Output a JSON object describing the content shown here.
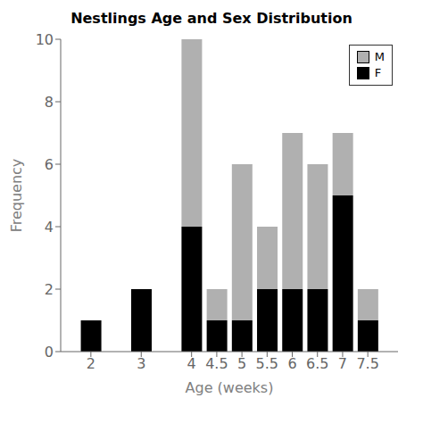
{
  "chart_data": {
    "type": "bar",
    "title": "Nestlings Age and Sex Distribution",
    "x": [
      2,
      3,
      4,
      4.5,
      5,
      5.5,
      6,
      6.5,
      7,
      7.5
    ],
    "series": [
      {
        "name": "F",
        "color": "#000000",
        "values": [
          1,
          2,
          4,
          1,
          1,
          2,
          2,
          2,
          5,
          1
        ]
      },
      {
        "name": "M",
        "color": "#b0b0b0",
        "values": [
          0,
          0,
          6,
          1,
          5,
          2,
          5,
          4,
          2,
          1
        ]
      }
    ],
    "xlabel": "Age (weeks)",
    "ylabel": "Frequency",
    "xlim": [
      1.4,
      8.1
    ],
    "xticks": [
      2,
      3,
      4,
      4.5,
      5,
      5.5,
      6,
      6.5,
      7,
      7.5
    ],
    "ylim": [
      0,
      10
    ],
    "yticks": [
      0,
      2,
      4,
      6,
      8,
      10
    ],
    "stacked": true,
    "grid": false,
    "legend": "upper right"
  }
}
